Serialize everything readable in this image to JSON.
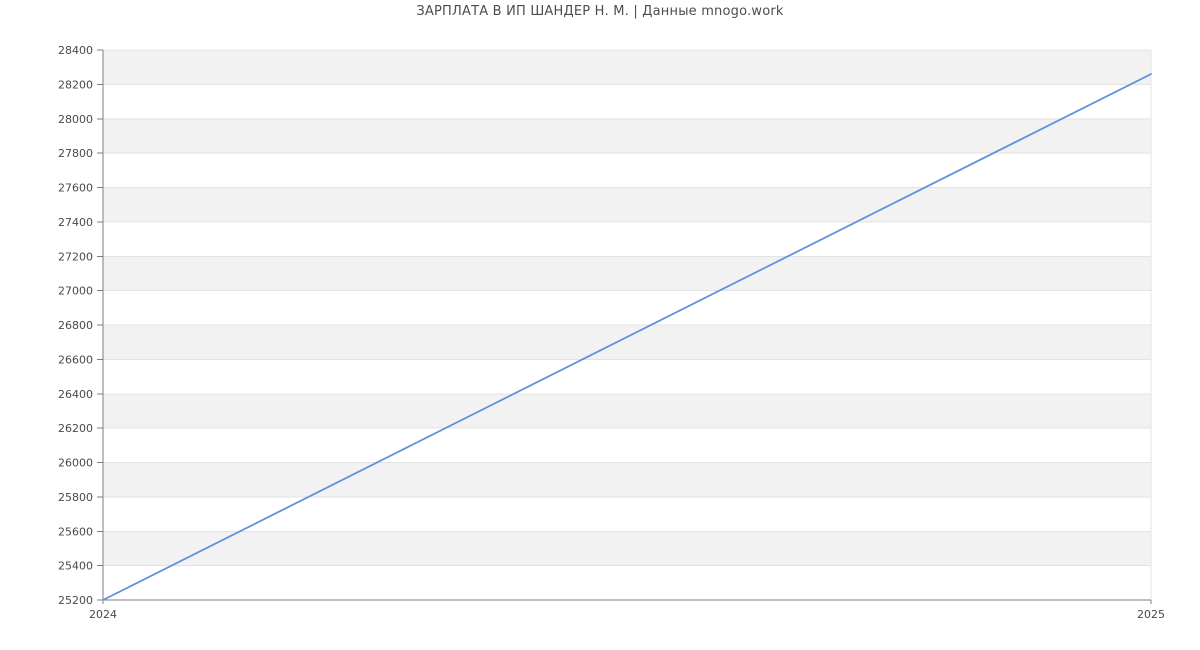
{
  "chart_data": {
    "type": "line",
    "title": "ЗАРПЛАТА В ИП ШАНДЕР Н. М. | Данные mnogo.work",
    "x": [
      2024,
      2025
    ],
    "xticks": [
      "2024",
      "2025"
    ],
    "series": [
      {
        "name": "salary",
        "values": [
          25200,
          28260
        ],
        "color": "#6290e0"
      }
    ],
    "xlabel": "",
    "ylabel": "",
    "ylim": [
      25200,
      28400
    ],
    "ytick_step": 200,
    "yticks": [
      25200,
      25400,
      25600,
      25800,
      26000,
      26200,
      26400,
      26600,
      26800,
      27000,
      27200,
      27400,
      27600,
      27800,
      28000,
      28200,
      28400
    ],
    "legend": "none",
    "grid": "horizontal",
    "band_colors": [
      "#f2f2f2",
      "#ffffff"
    ],
    "grid_color": "#e3e3e3",
    "axis_color": "#7d7d7d",
    "tick_label_color": "#4a4a4a",
    "title_color": "#4d4d4d",
    "background": "#ffffff",
    "tick_font_size": 11,
    "title_font_size": 13
  }
}
